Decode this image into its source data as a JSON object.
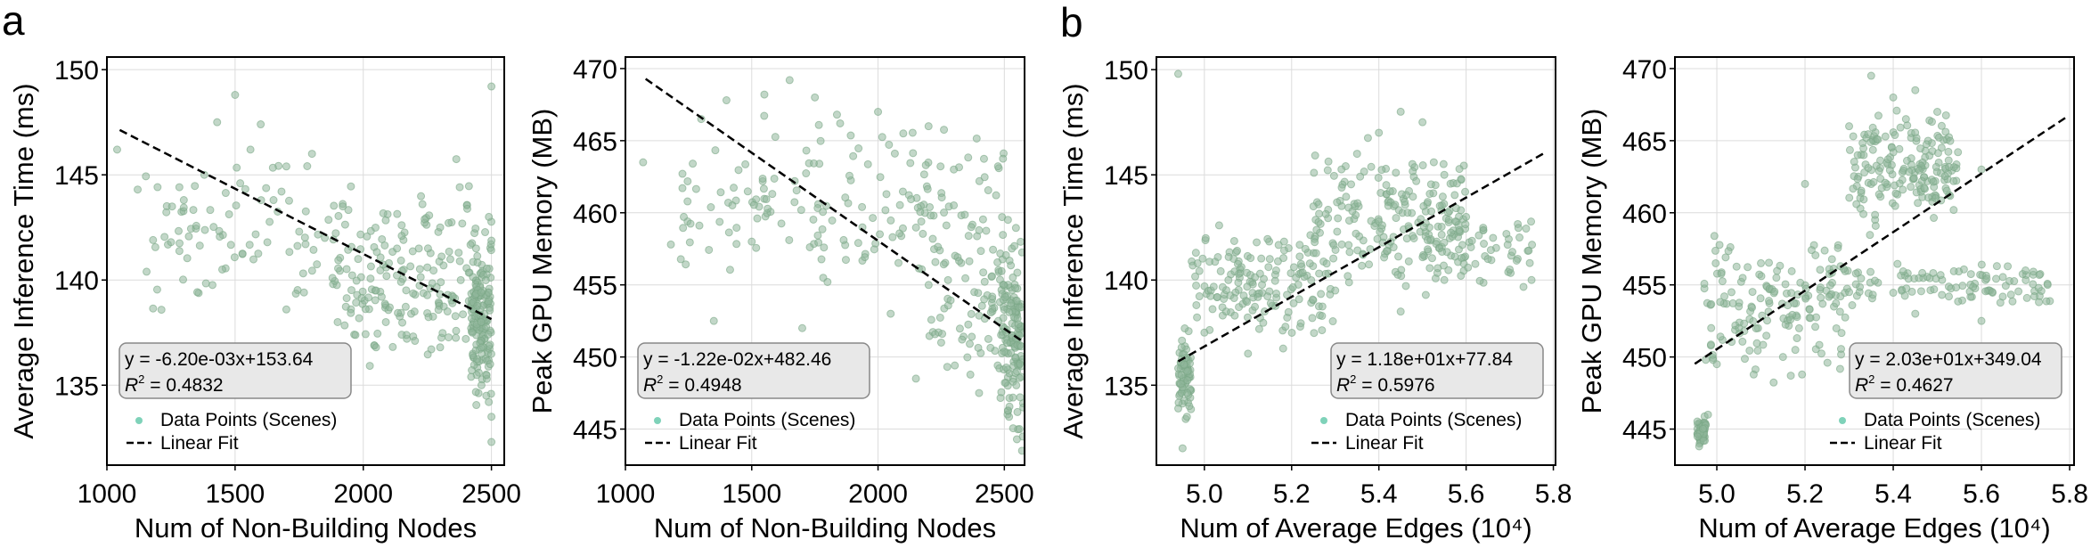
{
  "panel_labels": [
    "a",
    "b"
  ],
  "colors": {
    "point": "#8fb79a",
    "point_edge": "#7aa685",
    "legend_marker": "#5fc7a8",
    "fit_line": "#000000",
    "grid": "#dcdcdc",
    "box_fill": "#e8e8e8",
    "box_edge": "#888888"
  },
  "chart_data": [
    {
      "type": "scatter",
      "panel": "a",
      "xlabel": "Num of Non-Building Nodes",
      "ylabel": "Average Inference Time (ms)",
      "xlim": [
        1000,
        2550
      ],
      "ylim": [
        131.2,
        150.6
      ],
      "xticks": [
        1000,
        1500,
        2000,
        2500
      ],
      "xtick_labels": [
        "1000",
        "1500",
        "2000",
        "2500"
      ],
      "yticks": [
        135,
        140,
        145,
        150
      ],
      "ytick_labels": [
        "135",
        "140",
        "145",
        "150"
      ],
      "fit": {
        "slope": -0.0062,
        "intercept": 153.64,
        "x_range": [
          1050,
          2500
        ]
      },
      "annotation": {
        "line1": "y = -6.20e-03x+153.64",
        "r2_label": "R",
        "r2_sup": "2",
        "r2_value": " = 0.4832",
        "position": "left"
      },
      "legend": {
        "scatter": "Data Points (Scenes)",
        "fit": "Linear Fit",
        "position": "bottom-left"
      },
      "points": [
        [
          1040,
          146.2
        ],
        [
          1120,
          144.3
        ],
        [
          1180,
          141.9
        ],
        [
          1250,
          141.8
        ],
        [
          1300,
          143.8
        ],
        [
          1380,
          145.0
        ],
        [
          1430,
          147.5
        ],
        [
          1500,
          148.8
        ],
        [
          1520,
          144.6
        ],
        [
          1560,
          146.2
        ],
        [
          1600,
          147.4
        ],
        [
          1650,
          143.8
        ],
        [
          1700,
          145.4
        ],
        [
          1750,
          142.3
        ],
        [
          1800,
          146.0
        ],
        [
          1850,
          142.0
        ],
        [
          1880,
          140.1
        ],
        [
          1920,
          143.5
        ],
        [
          1980,
          141.0
        ],
        [
          2050,
          139.5
        ],
        [
          2100,
          140.8
        ],
        [
          2150,
          142.1
        ],
        [
          2200,
          138.5
        ],
        [
          2250,
          140.6
        ],
        [
          2300,
          136.8
        ],
        [
          2350,
          139.2
        ],
        [
          2400,
          137.2
        ],
        [
          2440,
          141.5
        ],
        [
          2460,
          138.0
        ],
        [
          2480,
          134.5
        ],
        [
          2490,
          143.0
        ],
        [
          2495,
          136.0
        ],
        [
          2500,
          133.5
        ],
        [
          2500,
          149.2
        ],
        [
          2500,
          132.3
        ],
        [
          1450,
          140.5
        ],
        [
          1700,
          138.6
        ],
        [
          1900,
          138.0
        ],
        [
          2050,
          136.8
        ],
        [
          2150,
          137.4
        ],
        [
          2300,
          142.5
        ]
      ],
      "clusters": [
        [
          1150,
          2500,
          137,
          147,
          150
        ],
        [
          1900,
          2500,
          135.5,
          143,
          120
        ],
        [
          2420,
          2500,
          133,
          143,
          140
        ]
      ]
    },
    {
      "type": "scatter",
      "panel": "a",
      "xlabel": "Num of Non-Building Nodes",
      "ylabel": "Peak GPU Memory (MB)",
      "xlim": [
        1000,
        2580
      ],
      "ylim": [
        442.5,
        470.8
      ],
      "xticks": [
        1000,
        1500,
        2000,
        2500
      ],
      "xtick_labels": [
        "1000",
        "1500",
        "2000",
        "2500"
      ],
      "yticks": [
        445,
        450,
        455,
        460,
        465,
        470
      ],
      "ytick_labels": [
        "445",
        "450",
        "455",
        "460",
        "465",
        "470"
      ],
      "fit": {
        "slope": -0.0122,
        "intercept": 482.46,
        "x_range": [
          1080,
          2580
        ]
      },
      "annotation": {
        "line1": "y = -1.22e-02x+482.46",
        "r2_label": "R",
        "r2_sup": "2",
        "r2_value": " = 0.4948",
        "position": "left"
      },
      "legend": {
        "scatter": "Data Points (Scenes)",
        "fit": "Linear Fit",
        "position": "bottom-left"
      },
      "points": [
        [
          1070,
          463.5
        ],
        [
          1180,
          457.8
        ],
        [
          1300,
          466.5
        ],
        [
          1400,
          467.8
        ],
        [
          1550,
          468.2
        ],
        [
          1650,
          469.2
        ],
        [
          1750,
          468.0
        ],
        [
          1850,
          466.2
        ],
        [
          2000,
          467.0
        ],
        [
          2100,
          465.5
        ],
        [
          2200,
          466.0
        ],
        [
          2300,
          463.0
        ],
        [
          2420,
          454.0
        ],
        [
          2500,
          452.0
        ],
        [
          2560,
          445.0
        ],
        [
          2570,
          443.5
        ],
        [
          1500,
          458.0
        ],
        [
          1800,
          455.2
        ],
        [
          2050,
          453.0
        ],
        [
          2250,
          451.0
        ],
        [
          2400,
          447.5
        ],
        [
          1350,
          452.5
        ],
        [
          1700,
          452.0
        ],
        [
          2150,
          448.5
        ],
        [
          2550,
          449.0
        ],
        [
          2575,
          446.5
        ]
      ],
      "clusters": [
        [
          1200,
          2500,
          453,
          468,
          170
        ],
        [
          2200,
          2575,
          447,
          461,
          80
        ],
        [
          2480,
          2575,
          443.5,
          459,
          130
        ]
      ]
    },
    {
      "type": "scatter",
      "panel": "b",
      "xlabel": "Num of Average Edges (10⁴)",
      "ylabel": "Average Inference Time (ms)",
      "xlim": [
        4.89,
        5.805
      ],
      "ylim": [
        131.2,
        150.6
      ],
      "xticks": [
        5.0,
        5.2,
        5.4,
        5.6,
        5.8
      ],
      "xtick_labels": [
        "5.0",
        "5.2",
        "5.4",
        "5.6",
        "5.8"
      ],
      "yticks": [
        135,
        140,
        145,
        150
      ],
      "ytick_labels": [
        "135",
        "140",
        "145",
        "150"
      ],
      "fit": {
        "slope": 11.8,
        "intercept": 77.84,
        "x_range": [
          4.94,
          5.78
        ]
      },
      "annotation": {
        "line1": "y = 1.18e+01x+77.84",
        "r2_label": "R",
        "r2_sup": "2",
        "r2_value": " = 0.5976",
        "position": "right"
      },
      "legend": {
        "scatter": "Data Points (Scenes)",
        "fit": "Linear Fit",
        "position": "bottom-right"
      },
      "points": [
        [
          4.94,
          149.8
        ],
        [
          4.95,
          132.0
        ],
        [
          4.96,
          133.5
        ],
        [
          5.0,
          137.5
        ],
        [
          5.05,
          138.5
        ],
        [
          5.15,
          141.0
        ],
        [
          5.25,
          143.5
        ],
        [
          5.35,
          146.0
        ],
        [
          5.4,
          147.0
        ],
        [
          5.45,
          148.0
        ],
        [
          5.5,
          147.5
        ],
        [
          5.55,
          145.0
        ],
        [
          5.6,
          143.0
        ],
        [
          5.65,
          141.0
        ],
        [
          5.7,
          140.5
        ],
        [
          5.75,
          140.0
        ],
        [
          5.45,
          138.5
        ],
        [
          5.55,
          140.0
        ],
        [
          5.3,
          139.5
        ],
        [
          5.1,
          136.5
        ]
      ],
      "clusters": [
        [
          4.94,
          4.97,
          133,
          138,
          70
        ],
        [
          4.97,
          5.3,
          136,
          143.5,
          160
        ],
        [
          5.25,
          5.6,
          138.5,
          147.5,
          200
        ],
        [
          5.5,
          5.76,
          139,
          144,
          60
        ]
      ]
    },
    {
      "type": "scatter",
      "panel": "b",
      "xlabel": "Num of Average Edges (10⁴)",
      "ylabel": "Peak GPU Memory (MB)",
      "xlim": [
        4.905,
        5.81
      ],
      "ylim": [
        442.5,
        470.8
      ],
      "xticks": [
        5.0,
        5.2,
        5.4,
        5.6,
        5.8
      ],
      "xtick_labels": [
        "5.0",
        "5.2",
        "5.4",
        "5.6",
        "5.8"
      ],
      "yticks": [
        445,
        450,
        455,
        460,
        465,
        470
      ],
      "ytick_labels": [
        "445",
        "450",
        "455",
        "460",
        "465",
        "470"
      ],
      "fit": {
        "slope": 20.3,
        "intercept": 349.04,
        "x_range": [
          4.95,
          5.79
        ]
      },
      "annotation": {
        "line1": "y = 2.03e+01x+349.04",
        "r2_label": "R",
        "r2_sup": "2",
        "r2_value": " = 0.4627",
        "position": "right"
      },
      "legend": {
        "scatter": "Data Points (Scenes)",
        "fit": "Linear Fit",
        "position": "bottom-right"
      },
      "points": [
        [
          4.96,
          443.8
        ],
        [
          4.97,
          444.2
        ],
        [
          4.98,
          446.0
        ],
        [
          5.0,
          449.5
        ],
        [
          5.05,
          452.0
        ],
        [
          5.1,
          456.5
        ],
        [
          5.2,
          462.0
        ],
        [
          5.3,
          466.0
        ],
        [
          5.35,
          469.5
        ],
        [
          5.4,
          468.0
        ],
        [
          5.45,
          468.5
        ],
        [
          5.5,
          467.0
        ],
        [
          5.6,
          463.0
        ],
        [
          5.7,
          456.0
        ],
        [
          5.75,
          455.0
        ],
        [
          5.6,
          452.5
        ],
        [
          5.45,
          453.0
        ],
        [
          5.3,
          454.5
        ],
        [
          5.15,
          450.0
        ]
      ],
      "clusters": [
        [
          4.955,
          4.975,
          443.5,
          446,
          50
        ],
        [
          4.97,
          5.3,
          447,
          460,
          150
        ],
        [
          5.3,
          5.55,
          458,
          468,
          180
        ],
        [
          5.25,
          5.78,
          453,
          457,
          110
        ]
      ]
    }
  ]
}
